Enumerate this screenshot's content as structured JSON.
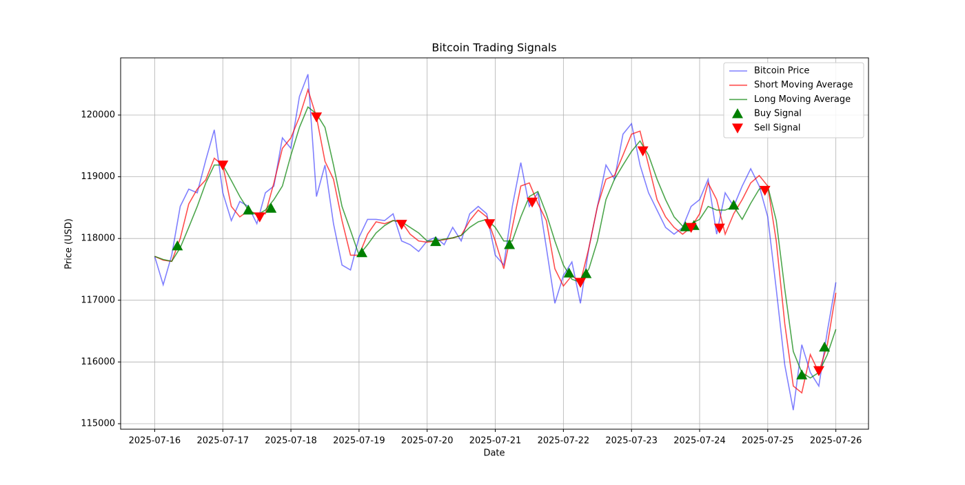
{
  "chart_data": {
    "type": "line",
    "title": "Bitcoin Trading Signals",
    "x_label": "Date",
    "y_label": "Price (USD)",
    "xlim": [
      "2025-07-15T12:00",
      "2025-07-26T11:30"
    ],
    "ylim": [
      114911,
      120926
    ],
    "xticks": [
      "2025-07-16",
      "2025-07-17",
      "2025-07-18",
      "2025-07-19",
      "2025-07-20",
      "2025-07-21",
      "2025-07-22",
      "2025-07-23",
      "2025-07-24",
      "2025-07-25",
      "2025-07-26"
    ],
    "yticks": [
      115000,
      116000,
      117000,
      118000,
      119000,
      120000
    ],
    "grid": true,
    "legend": "upper right",
    "x": [
      "2025-07-16T00:00",
      "2025-07-16T03:00",
      "2025-07-16T06:00",
      "2025-07-16T09:00",
      "2025-07-16T12:00",
      "2025-07-16T15:00",
      "2025-07-16T18:00",
      "2025-07-16T21:00",
      "2025-07-17T00:00",
      "2025-07-17T03:00",
      "2025-07-17T06:00",
      "2025-07-17T09:00",
      "2025-07-17T12:00",
      "2025-07-17T15:00",
      "2025-07-17T18:00",
      "2025-07-17T21:00",
      "2025-07-18T00:00",
      "2025-07-18T03:00",
      "2025-07-18T06:00",
      "2025-07-18T09:00",
      "2025-07-18T12:00",
      "2025-07-18T15:00",
      "2025-07-18T18:00",
      "2025-07-18T21:00",
      "2025-07-19T00:00",
      "2025-07-19T03:00",
      "2025-07-19T06:00",
      "2025-07-19T09:00",
      "2025-07-19T12:00",
      "2025-07-19T15:00",
      "2025-07-19T18:00",
      "2025-07-19T21:00",
      "2025-07-20T00:00",
      "2025-07-20T03:00",
      "2025-07-20T06:00",
      "2025-07-20T09:00",
      "2025-07-20T12:00",
      "2025-07-20T15:00",
      "2025-07-20T18:00",
      "2025-07-20T21:00",
      "2025-07-21T00:00",
      "2025-07-21T03:00",
      "2025-07-21T06:00",
      "2025-07-21T09:00",
      "2025-07-21T12:00",
      "2025-07-21T15:00",
      "2025-07-21T18:00",
      "2025-07-21T21:00",
      "2025-07-22T00:00",
      "2025-07-22T03:00",
      "2025-07-22T06:00",
      "2025-07-22T09:00",
      "2025-07-22T12:00",
      "2025-07-22T15:00",
      "2025-07-22T18:00",
      "2025-07-22T21:00",
      "2025-07-23T00:00",
      "2025-07-23T03:00",
      "2025-07-23T06:00",
      "2025-07-23T09:00",
      "2025-07-23T12:00",
      "2025-07-23T15:00",
      "2025-07-23T18:00",
      "2025-07-23T21:00",
      "2025-07-24T00:00",
      "2025-07-24T03:00",
      "2025-07-24T06:00",
      "2025-07-24T09:00",
      "2025-07-24T12:00",
      "2025-07-24T15:00",
      "2025-07-24T18:00",
      "2025-07-24T21:00",
      "2025-07-25T00:00",
      "2025-07-25T03:00",
      "2025-07-25T06:00",
      "2025-07-25T09:00",
      "2025-07-25T12:00",
      "2025-07-25T15:00",
      "2025-07-25T18:00",
      "2025-07-25T21:00",
      "2025-07-26T00:00"
    ],
    "series": [
      {
        "name": "Bitcoin Price",
        "color": "#0000ff",
        "alpha": 0.5,
        "values": [
          117710,
          117250,
          117730,
          118520,
          118800,
          118740,
          119270,
          119760,
          118740,
          118290,
          118600,
          118520,
          118240,
          118740,
          118850,
          119630,
          119460,
          120300,
          120660,
          118680,
          119190,
          118240,
          117570,
          117490,
          118020,
          118310,
          118310,
          118290,
          118400,
          117960,
          117900,
          117790,
          117960,
          118020,
          117900,
          118180,
          117960,
          118400,
          118520,
          118400,
          117730,
          117570,
          118520,
          119230,
          118520,
          118740,
          117850,
          116950,
          117400,
          117620,
          116950,
          117850,
          118520,
          119190,
          118960,
          119690,
          119860,
          119190,
          118740,
          118460,
          118180,
          118070,
          118180,
          118520,
          118630,
          118960,
          118070,
          118740,
          118520,
          118850,
          119130,
          118850,
          118350,
          117180,
          115950,
          115220,
          116280,
          115830,
          115610,
          116500,
          117290
        ]
      },
      {
        "name": "Short Moving Average",
        "color": "#ff0000",
        "alpha": 0.7,
        "values": [
          117710,
          117650,
          117630,
          118000,
          118560,
          118800,
          118950,
          119300,
          119190,
          118520,
          118350,
          118450,
          118400,
          118400,
          118900,
          119460,
          119630,
          119970,
          120410,
          119970,
          119250,
          118960,
          118290,
          117730,
          117730,
          118070,
          118270,
          118240,
          118290,
          118270,
          118070,
          117960,
          117940,
          117960,
          117980,
          118010,
          118050,
          118290,
          118460,
          118350,
          117960,
          117510,
          118180,
          118850,
          118900,
          118570,
          118290,
          117510,
          117230,
          117400,
          117290,
          117850,
          118520,
          118960,
          119020,
          119350,
          119690,
          119740,
          119190,
          118630,
          118350,
          118180,
          118070,
          118180,
          118400,
          118900,
          118630,
          118070,
          118400,
          118630,
          118900,
          119020,
          118850,
          117960,
          116620,
          115610,
          115500,
          116120,
          115830,
          116280,
          117120
        ]
      },
      {
        "name": "Long Moving Average",
        "color": "#008000",
        "alpha": 0.7,
        "values": [
          117710,
          117660,
          117630,
          117850,
          118180,
          118520,
          118900,
          119190,
          119190,
          118940,
          118680,
          118460,
          118380,
          118460,
          118630,
          118850,
          119350,
          119800,
          120130,
          120020,
          119800,
          119190,
          118520,
          118130,
          117730,
          117900,
          118090,
          118210,
          118290,
          118270,
          118180,
          118090,
          117960,
          117960,
          117990,
          118010,
          118050,
          118180,
          118270,
          118310,
          118180,
          117960,
          117960,
          118350,
          118680,
          118760,
          118400,
          117960,
          117570,
          117340,
          117290,
          117510,
          117960,
          118630,
          118960,
          119190,
          119410,
          119580,
          119350,
          118960,
          118630,
          118350,
          118200,
          118240,
          118310,
          118520,
          118460,
          118460,
          118520,
          118310,
          118570,
          118800,
          118850,
          118290,
          117180,
          116170,
          115830,
          115740,
          115830,
          116120,
          116530
        ]
      },
      {
        "name": "Buy Signal",
        "type": "scatter",
        "marker": "triangle-up",
        "color": "#008000",
        "x": [
          "2025-07-16T08:00",
          "2025-07-17T09:00",
          "2025-07-17T17:00",
          "2025-07-19T01:00",
          "2025-07-20T03:00",
          "2025-07-21T05:00",
          "2025-07-22T02:00",
          "2025-07-22T08:00",
          "2025-07-23T19:00",
          "2025-07-23T22:00",
          "2025-07-24T12:00",
          "2025-07-25T12:00",
          "2025-07-25T20:00"
        ],
        "values": [
          117880,
          118460,
          118490,
          117770,
          117950,
          117900,
          117440,
          117430,
          118190,
          118210,
          118540,
          115790,
          116240
        ]
      },
      {
        "name": "Sell Signal",
        "type": "scatter",
        "marker": "triangle-down",
        "color": "#ff0000",
        "x": [
          "2025-07-17T00:00",
          "2025-07-17T13:00",
          "2025-07-18T09:00",
          "2025-07-19T15:00",
          "2025-07-20T22:00",
          "2025-07-21T13:00",
          "2025-07-22T06:00",
          "2025-07-23T04:00",
          "2025-07-23T21:00",
          "2025-07-24T07:00",
          "2025-07-24T23:00",
          "2025-07-25T18:00"
        ],
        "values": [
          119190,
          118350,
          119970,
          118230,
          118240,
          118590,
          117290,
          119420,
          118180,
          118170,
          118780,
          115860
        ]
      }
    ]
  }
}
